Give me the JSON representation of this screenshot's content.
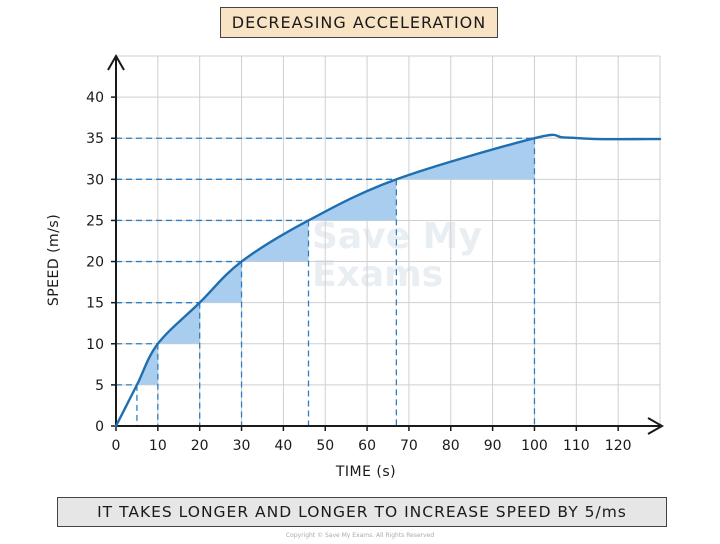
{
  "header": {
    "title": "DECREASING ACCELERATION"
  },
  "footer": {
    "caption": "IT TAKES LONGER AND LONGER TO INCREASE SPEED BY 5/ms",
    "copyright": "Copyright © Save My Exams. All Rights Reserved"
  },
  "watermark": {
    "text": "Save My Exams"
  },
  "chart_data": {
    "type": "line",
    "title": "DECREASING ACCELERATION",
    "xlabel": "TIME (s)",
    "ylabel": "SPEED (m/s)",
    "xlim": [
      0,
      130
    ],
    "ylim": [
      0,
      45
    ],
    "x_ticks": [
      0,
      10,
      20,
      30,
      40,
      50,
      60,
      70,
      80,
      90,
      100,
      110,
      120
    ],
    "y_ticks": [
      0,
      5,
      10,
      15,
      20,
      25,
      30,
      35,
      40
    ],
    "grid": true,
    "series": [
      {
        "x": [
          0,
          5,
          10,
          20,
          30,
          46,
          67,
          100,
          107,
          115,
          130
        ],
        "values": [
          0,
          5,
          10,
          15,
          20,
          25,
          30,
          35,
          35.1,
          34.9,
          34.9
        ]
      }
    ],
    "speed_steps": [
      {
        "t_start": 5,
        "t_end": 10,
        "v_start": 5,
        "v_end": 10
      },
      {
        "t_start": 10,
        "t_end": 20,
        "v_start": 10,
        "v_end": 15
      },
      {
        "t_start": 20,
        "t_end": 30,
        "v_start": 15,
        "v_end": 20
      },
      {
        "t_start": 30,
        "t_end": 46,
        "v_start": 20,
        "v_end": 25
      },
      {
        "t_start": 46,
        "t_end": 67,
        "v_start": 25,
        "v_end": 30
      },
      {
        "t_start": 67,
        "t_end": 100,
        "v_start": 30,
        "v_end": 35
      }
    ],
    "guide_points": [
      {
        "t": 5,
        "v": 5
      },
      {
        "t": 10,
        "v": 10
      },
      {
        "t": 20,
        "v": 15
      },
      {
        "t": 30,
        "v": 20
      },
      {
        "t": 46,
        "v": 25
      },
      {
        "t": 67,
        "v": 30
      },
      {
        "t": 100,
        "v": 35
      }
    ],
    "colors": {
      "line": "#1f6fb0",
      "shade": "#a9cdee",
      "guide": "#2c7fc4",
      "grid": "#cfcfcf"
    }
  }
}
